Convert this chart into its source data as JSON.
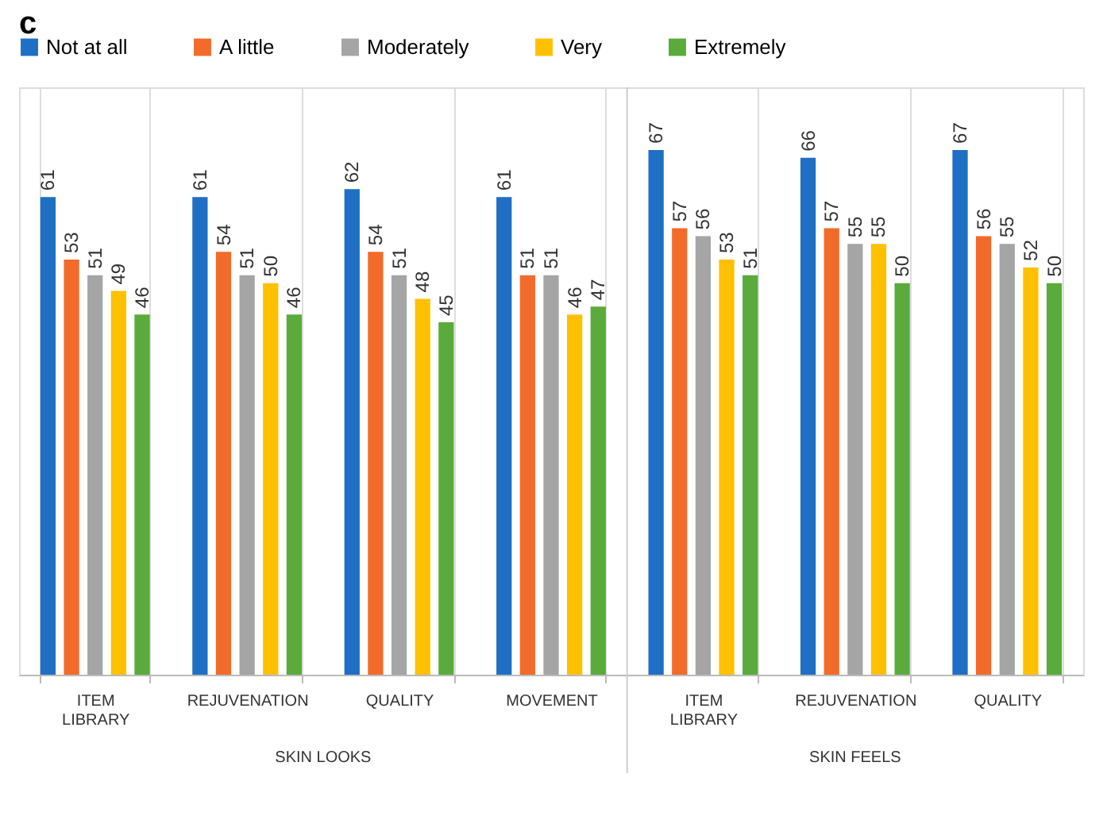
{
  "chart_data": {
    "type": "bar",
    "title": "c",
    "categories": [
      "ITEM LIBRARY",
      "REJUVENATION",
      "QUALITY",
      "MOVEMENT",
      "ITEM LIBRARY",
      "REJUVENATION",
      "QUALITY"
    ],
    "series": [
      {
        "name": "Not at all",
        "color": "#1f6fc5",
        "values": [
          61,
          61,
          62,
          61,
          67,
          66,
          67
        ]
      },
      {
        "name": "A little",
        "color": "#f26b2b",
        "values": [
          53,
          54,
          54,
          51,
          57,
          57,
          56
        ]
      },
      {
        "name": "Moderately",
        "color": "#a5a5a5",
        "values": [
          51,
          51,
          51,
          51,
          56,
          55,
          55
        ]
      },
      {
        "name": "Very",
        "color": "#ffc000",
        "values": [
          49,
          50,
          48,
          46,
          53,
          55,
          52
        ]
      },
      {
        "name": "Extremely",
        "color": "#5aab3c",
        "values": [
          46,
          46,
          45,
          47,
          51,
          50,
          50
        ]
      }
    ],
    "annotations": [
      "SKIN LOOKS",
      "SKIN FEELS"
    ],
    "ylim": [
      0,
      75
    ],
    "data_labels": true,
    "grid": "x",
    "legend": "top"
  }
}
